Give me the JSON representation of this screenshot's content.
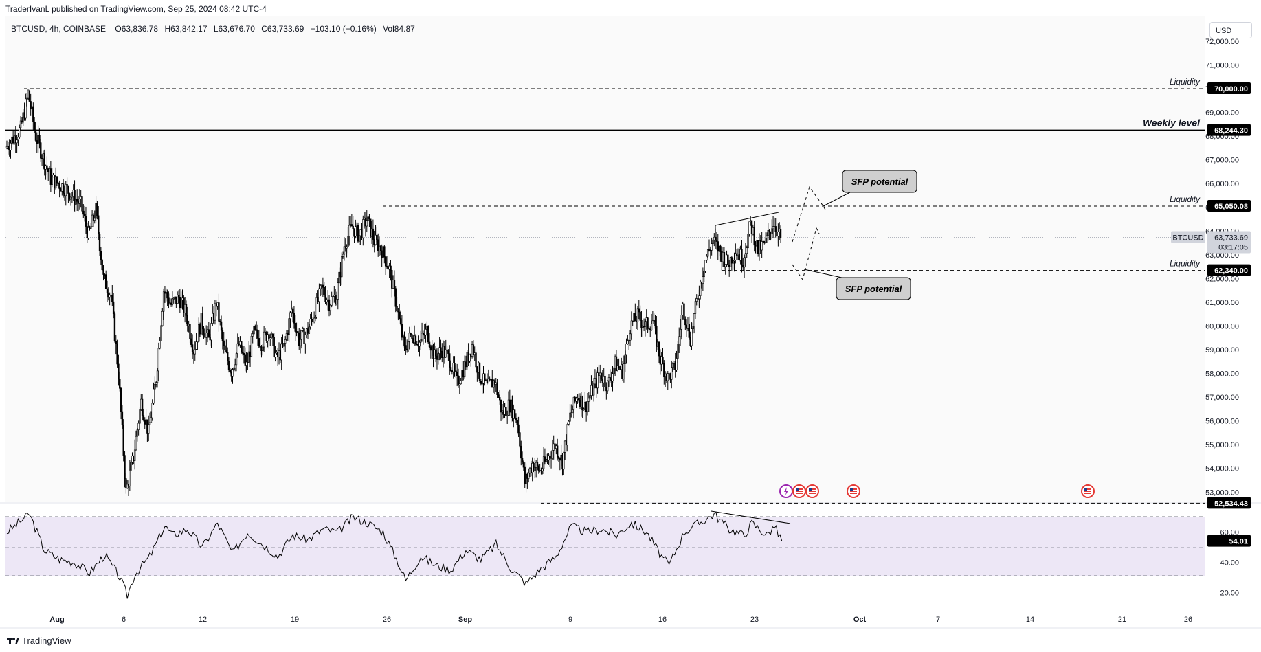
{
  "header": {
    "publisher": "TraderIvanL published on TradingView.com, Sep 25, 2024 08:42 UTC-4"
  },
  "legend": {
    "symbol": "BTCUSD, 4h, COINBASE",
    "open": "O63,836.78",
    "high": "H63,842.17",
    "low": "L63,676.70",
    "close": "C63,733.69",
    "change": "−103.10 (−0.16%)",
    "volume": "Vol84.87"
  },
  "currency": "USD",
  "footer": {
    "brand": "TradingView"
  },
  "colors": {
    "candle": "#000000",
    "rsi_band": "#ede7f6",
    "axis_text": "#131722",
    "label_bg": "#000000",
    "current_price_bg": "#d1d4dc"
  },
  "chart_data": {
    "type": "candlestick",
    "price_axis": {
      "ticks": [
        "72,000.00",
        "71,000.00",
        "70,000.00",
        "69,000.00",
        "68,000.00",
        "67,000.00",
        "66,000.00",
        "65,000.00",
        "64,000.00",
        "63,000.00",
        "62,000.00",
        "61,000.00",
        "60,000.00",
        "59,000.00",
        "58,000.00",
        "57,000.00",
        "56,000.00",
        "55,000.00",
        "54,000.00",
        "53,000.00"
      ],
      "ylim": [
        52534,
        72300
      ]
    },
    "time_axis": {
      "ticks": [
        "Aug",
        "6",
        "12",
        "19",
        "26",
        "Sep",
        "9",
        "16",
        "23",
        "Oct",
        "7",
        "14",
        "21",
        "26"
      ]
    },
    "price_path": [
      {
        "t": 0,
        "p": 67500
      },
      {
        "t": 2,
        "p": 68300
      },
      {
        "t": 3,
        "p": 69800
      },
      {
        "t": 4,
        "p": 68000
      },
      {
        "t": 6,
        "p": 66200
      },
      {
        "t": 8,
        "p": 65800
      },
      {
        "t": 10,
        "p": 65100
      },
      {
        "t": 11,
        "p": 63800
      },
      {
        "t": 12,
        "p": 64900
      },
      {
        "t": 13,
        "p": 62000
      },
      {
        "t": 14,
        "p": 61300
      },
      {
        "t": 15,
        "p": 58000
      },
      {
        "t": 16,
        "p": 53000
      },
      {
        "t": 17,
        "p": 54500
      },
      {
        "t": 18,
        "p": 56800
      },
      {
        "t": 19,
        "p": 55500
      },
      {
        "t": 20,
        "p": 57800
      },
      {
        "t": 21,
        "p": 61500
      },
      {
        "t": 22,
        "p": 60900
      },
      {
        "t": 23,
        "p": 61200
      },
      {
        "t": 24,
        "p": 60500
      },
      {
        "t": 25,
        "p": 59000
      },
      {
        "t": 26,
        "p": 60200
      },
      {
        "t": 27,
        "p": 59400
      },
      {
        "t": 28,
        "p": 61000
      },
      {
        "t": 29,
        "p": 59000
      },
      {
        "t": 30,
        "p": 58100
      },
      {
        "t": 31,
        "p": 59200
      },
      {
        "t": 32,
        "p": 58300
      },
      {
        "t": 33,
        "p": 59700
      },
      {
        "t": 34,
        "p": 59300
      },
      {
        "t": 35,
        "p": 59800
      },
      {
        "t": 36,
        "p": 58600
      },
      {
        "t": 37,
        "p": 59100
      },
      {
        "t": 38,
        "p": 60700
      },
      {
        "t": 39,
        "p": 59400
      },
      {
        "t": 40,
        "p": 59700
      },
      {
        "t": 41,
        "p": 60500
      },
      {
        "t": 42,
        "p": 61600
      },
      {
        "t": 43,
        "p": 61000
      },
      {
        "t": 44,
        "p": 61300
      },
      {
        "t": 45,
        "p": 63400
      },
      {
        "t": 46,
        "p": 64200
      },
      {
        "t": 47,
        "p": 63800
      },
      {
        "t": 48,
        "p": 64500
      },
      {
        "t": 49,
        "p": 63600
      },
      {
        "t": 50,
        "p": 63200
      },
      {
        "t": 51,
        "p": 62400
      },
      {
        "t": 52,
        "p": 60800
      },
      {
        "t": 53,
        "p": 59000
      },
      {
        "t": 54,
        "p": 59700
      },
      {
        "t": 55,
        "p": 59300
      },
      {
        "t": 56,
        "p": 59800
      },
      {
        "t": 57,
        "p": 58700
      },
      {
        "t": 58,
        "p": 59000
      },
      {
        "t": 59,
        "p": 58600
      },
      {
        "t": 60,
        "p": 57600
      },
      {
        "t": 61,
        "p": 58300
      },
      {
        "t": 62,
        "p": 59200
      },
      {
        "t": 63,
        "p": 57900
      },
      {
        "t": 64,
        "p": 57400
      },
      {
        "t": 65,
        "p": 57700
      },
      {
        "t": 66,
        "p": 56300
      },
      {
        "t": 67,
        "p": 56700
      },
      {
        "t": 68,
        "p": 56000
      },
      {
        "t": 69,
        "p": 53400
      },
      {
        "t": 70,
        "p": 54200
      },
      {
        "t": 71,
        "p": 53900
      },
      {
        "t": 72,
        "p": 54400
      },
      {
        "t": 73,
        "p": 55000
      },
      {
        "t": 74,
        "p": 54300
      },
      {
        "t": 75,
        "p": 56200
      },
      {
        "t": 76,
        "p": 57100
      },
      {
        "t": 77,
        "p": 56600
      },
      {
        "t": 78,
        "p": 57300
      },
      {
        "t": 79,
        "p": 58000
      },
      {
        "t": 80,
        "p": 57500
      },
      {
        "t": 81,
        "p": 58400
      },
      {
        "t": 82,
        "p": 58100
      },
      {
        "t": 83,
        "p": 60000
      },
      {
        "t": 84,
        "p": 60400
      },
      {
        "t": 85,
        "p": 60000
      },
      {
        "t": 86,
        "p": 60200
      },
      {
        "t": 87,
        "p": 58600
      },
      {
        "t": 88,
        "p": 57800
      },
      {
        "t": 89,
        "p": 58300
      },
      {
        "t": 90,
        "p": 60800
      },
      {
        "t": 91,
        "p": 59500
      },
      {
        "t": 92,
        "p": 61300
      },
      {
        "t": 93,
        "p": 62800
      },
      {
        "t": 94,
        "p": 63600
      },
      {
        "t": 95,
        "p": 63100
      },
      {
        "t": 96,
        "p": 62600
      },
      {
        "t": 97,
        "p": 63200
      },
      {
        "t": 98,
        "p": 62800
      },
      {
        "t": 99,
        "p": 64300
      },
      {
        "t": 100,
        "p": 63200
      },
      {
        "t": 101,
        "p": 63500
      },
      {
        "t": 102,
        "p": 64400
      },
      {
        "t": 103,
        "p": 63700
      }
    ],
    "levels": [
      {
        "name": "liquidity-top",
        "price": 70000,
        "label": "Liquidity",
        "price_label": "70,000.00",
        "style": "dashed"
      },
      {
        "name": "weekly-level",
        "price": 68244.3,
        "label": "Weekly level",
        "price_label": "68,244.30",
        "style": "solid"
      },
      {
        "name": "liquidity-mid",
        "price": 65050.08,
        "label": "Liquidity",
        "price_label": "65,050.08",
        "style": "dashed"
      },
      {
        "name": "liquidity-low",
        "price": 62340,
        "label": "Liquidity",
        "price_label": "62,340.00",
        "style": "dashed"
      },
      {
        "name": "sep-low",
        "price": 52534.43,
        "label": "",
        "price_label": "52,534.43",
        "style": "dashed"
      }
    ],
    "current_price": {
      "symbol": "BTCUSD",
      "price": 63733.69,
      "price_label": "63,733.69",
      "countdown": "03:17:05"
    },
    "annotations": [
      {
        "name": "sfp-top",
        "text": "SFP potential"
      },
      {
        "name": "sfp-bottom",
        "text": "SFP potential"
      }
    ],
    "rsi": {
      "ticks": [
        "60.00",
        "40.00",
        "20.00"
      ],
      "band": [
        30,
        70
      ],
      "current": "54.01",
      "path": [
        {
          "t": 0,
          "v": 60
        },
        {
          "t": 2,
          "v": 68
        },
        {
          "t": 3,
          "v": 72
        },
        {
          "t": 5,
          "v": 48
        },
        {
          "t": 7,
          "v": 42
        },
        {
          "t": 9,
          "v": 40
        },
        {
          "t": 11,
          "v": 33
        },
        {
          "t": 13,
          "v": 45
        },
        {
          "t": 15,
          "v": 30
        },
        {
          "t": 16,
          "v": 18
        },
        {
          "t": 17,
          "v": 32
        },
        {
          "t": 19,
          "v": 44
        },
        {
          "t": 21,
          "v": 64
        },
        {
          "t": 22,
          "v": 58
        },
        {
          "t": 24,
          "v": 62
        },
        {
          "t": 26,
          "v": 50
        },
        {
          "t": 28,
          "v": 66
        },
        {
          "t": 30,
          "v": 46
        },
        {
          "t": 32,
          "v": 60
        },
        {
          "t": 34,
          "v": 52
        },
        {
          "t": 36,
          "v": 44
        },
        {
          "t": 38,
          "v": 58
        },
        {
          "t": 40,
          "v": 55
        },
        {
          "t": 42,
          "v": 62
        },
        {
          "t": 44,
          "v": 60
        },
        {
          "t": 46,
          "v": 70
        },
        {
          "t": 48,
          "v": 66
        },
        {
          "t": 50,
          "v": 60
        },
        {
          "t": 52,
          "v": 40
        },
        {
          "t": 53,
          "v": 28
        },
        {
          "t": 55,
          "v": 44
        },
        {
          "t": 57,
          "v": 38
        },
        {
          "t": 59,
          "v": 35
        },
        {
          "t": 61,
          "v": 48
        },
        {
          "t": 63,
          "v": 42
        },
        {
          "t": 65,
          "v": 52
        },
        {
          "t": 67,
          "v": 36
        },
        {
          "t": 69,
          "v": 26
        },
        {
          "t": 71,
          "v": 36
        },
        {
          "t": 73,
          "v": 44
        },
        {
          "t": 75,
          "v": 64
        },
        {
          "t": 77,
          "v": 60
        },
        {
          "t": 79,
          "v": 62
        },
        {
          "t": 81,
          "v": 58
        },
        {
          "t": 83,
          "v": 66
        },
        {
          "t": 85,
          "v": 60
        },
        {
          "t": 87,
          "v": 44
        },
        {
          "t": 88,
          "v": 38
        },
        {
          "t": 90,
          "v": 60
        },
        {
          "t": 92,
          "v": 66
        },
        {
          "t": 94,
          "v": 72
        },
        {
          "t": 96,
          "v": 62
        },
        {
          "t": 98,
          "v": 58
        },
        {
          "t": 99,
          "v": 66
        },
        {
          "t": 101,
          "v": 58
        },
        {
          "t": 102,
          "v": 64
        },
        {
          "t": 103,
          "v": 54
        }
      ]
    }
  }
}
